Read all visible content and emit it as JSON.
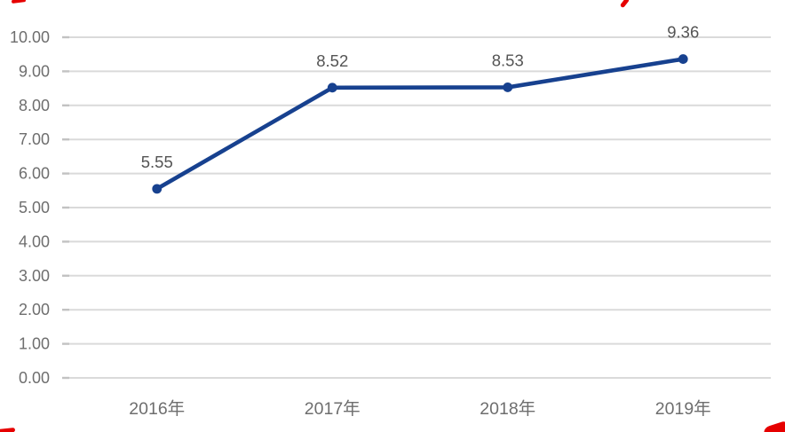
{
  "chart_data": {
    "type": "line",
    "title": "",
    "xlabel": "",
    "ylabel": "",
    "categories": [
      "2016年",
      "2017年",
      "2018年",
      "2019年"
    ],
    "values": [
      5.55,
      8.52,
      8.53,
      9.36
    ],
    "data_labels": [
      "5.55",
      "8.52",
      "8.53",
      "9.36"
    ],
    "ylim": [
      0,
      10
    ],
    "y_tick_step": 1,
    "y_ticks": [
      "0.00",
      "1.00",
      "2.00",
      "3.00",
      "4.00",
      "5.00",
      "6.00",
      "7.00",
      "8.00",
      "9.00",
      "10.00"
    ],
    "grid": "horizontal",
    "legend_position": "none",
    "line_color": "#17418F",
    "marker": "circle"
  },
  "colors": {
    "background": "#ffffff",
    "gridline": "#dadada",
    "axis_tick": "#c2c2c2",
    "axis_label": "#6e6e6e",
    "data_label": "#545454",
    "red_mark": "#e60000"
  }
}
